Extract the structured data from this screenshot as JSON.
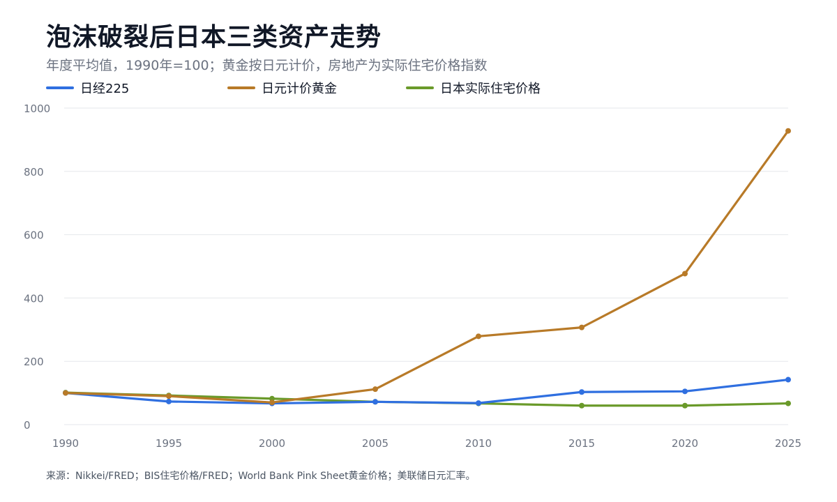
{
  "header": {
    "title": "泡沫破裂后日本三类资产走势",
    "subtitle": "年度平均值，1990年=100；黄金按日元计价，房地产为实际住宅价格指数"
  },
  "footer": {
    "source": "来源：Nikkei/FRED；BIS住宅价格/FRED；World Bank Pink Sheet黄金价格；美联储日元汇率。"
  },
  "colors": {
    "nikkei": "#2f6fe0",
    "gold": "#b87a28",
    "housing": "#6a9a2a",
    "grid": "#e5e7eb",
    "axis_text": "#6b7280"
  },
  "chart_data": {
    "type": "line",
    "title": "泡沫破裂后日本三类资产走势",
    "subtitle": "年度平均值，1990年=100；黄金按日元计价，房地产为实际住宅价格指数",
    "xlabel": "",
    "ylabel": "",
    "x": [
      1990,
      1995,
      2000,
      2005,
      2010,
      2015,
      2020,
      2025
    ],
    "x_ticks": [
      "1990",
      "1995",
      "2000",
      "2005",
      "2010",
      "2015",
      "2020",
      "2025"
    ],
    "y_ticks": [
      "0",
      "200",
      "400",
      "600",
      "800",
      "1000"
    ],
    "ylim": [
      0,
      1000
    ],
    "grid": true,
    "legend_position": "top-left",
    "series": [
      {
        "name": "日经225",
        "color": "#2f6fe0",
        "values": [
          100,
          73,
          67,
          72,
          68,
          103,
          105,
          142
        ]
      },
      {
        "name": "日元计价黄金",
        "color": "#b87a28",
        "values": [
          100,
          90,
          70,
          112,
          279,
          307,
          477,
          928
        ]
      },
      {
        "name": "日本实际住宅价格",
        "color": "#6a9a2a",
        "values": [
          101,
          92,
          82,
          72,
          67,
          60,
          60,
          67
        ]
      }
    ]
  }
}
